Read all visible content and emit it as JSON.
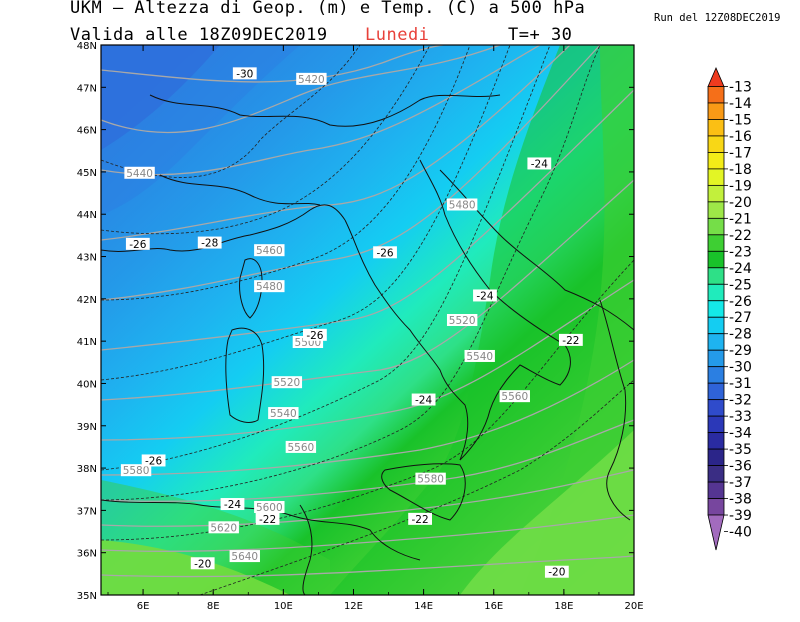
{
  "header": {
    "title": "UKM – Altezza di Geop. (m) e Temp. (C) a 500 hPa",
    "valid": "Valida alle 18Z09DEC2019",
    "day": "Lunedi",
    "step": "T=+ 30",
    "run": "Run del 12Z08DEC2019"
  },
  "map": {
    "lat_labels": [
      "48N",
      "47N",
      "46N",
      "45N",
      "44N",
      "43N",
      "42N",
      "41N",
      "40N",
      "39N",
      "38N",
      "37N",
      "36N",
      "35N"
    ],
    "lon_labels": [
      "6E",
      "8E",
      "10E",
      "12E",
      "14E",
      "16E",
      "18E",
      "20E"
    ],
    "height_labels": [
      {
        "text": "5420",
        "lon": 10.8,
        "lat": 47.2
      },
      {
        "text": "5440",
        "lon": 5.9,
        "lat": 44.98
      },
      {
        "text": "5480",
        "lon": 15.1,
        "lat": 44.23
      },
      {
        "text": "5460",
        "lon": 9.6,
        "lat": 43.15
      },
      {
        "text": "5480",
        "lon": 9.6,
        "lat": 42.3
      },
      {
        "text": "5520",
        "lon": 15.1,
        "lat": 41.5
      },
      {
        "text": "5500",
        "lon": 10.7,
        "lat": 40.98
      },
      {
        "text": "5540",
        "lon": 15.6,
        "lat": 40.65
      },
      {
        "text": "5520",
        "lon": 10.1,
        "lat": 40.03
      },
      {
        "text": "5560",
        "lon": 16.6,
        "lat": 39.7
      },
      {
        "text": "5540",
        "lon": 10.0,
        "lat": 39.3
      },
      {
        "text": "5560",
        "lon": 10.5,
        "lat": 38.5
      },
      {
        "text": "5580",
        "lon": 5.8,
        "lat": 37.95
      },
      {
        "text": "5580",
        "lon": 14.2,
        "lat": 37.75
      },
      {
        "text": "5600",
        "lon": 9.6,
        "lat": 37.08
      },
      {
        "text": "5620",
        "lon": 8.3,
        "lat": 36.6
      },
      {
        "text": "5640",
        "lon": 8.9,
        "lat": 35.92
      }
    ],
    "temp_labels": [
      {
        "text": "-30",
        "lon": 8.9,
        "lat": 47.33
      },
      {
        "text": "-26",
        "lon": 5.85,
        "lat": 43.3
      },
      {
        "text": "-28",
        "lon": 7.9,
        "lat": 43.33
      },
      {
        "text": "-26",
        "lon": 12.9,
        "lat": 43.1
      },
      {
        "text": "-24",
        "lon": 17.3,
        "lat": 45.2
      },
      {
        "text": "-24",
        "lon": 15.75,
        "lat": 42.08
      },
      {
        "text": "-22",
        "lon": 18.2,
        "lat": 41.03
      },
      {
        "text": "-26",
        "lon": 10.9,
        "lat": 41.15
      },
      {
        "text": "-24",
        "lon": 14.0,
        "lat": 39.62
      },
      {
        "text": "-26",
        "lon": 6.3,
        "lat": 38.18
      },
      {
        "text": "-24",
        "lon": 8.55,
        "lat": 37.15
      },
      {
        "text": "-22",
        "lon": 9.55,
        "lat": 36.8
      },
      {
        "text": "-22",
        "lon": 13.9,
        "lat": 36.8
      },
      {
        "text": "-20",
        "lon": 7.7,
        "lat": 35.75
      },
      {
        "text": "-20",
        "lon": 17.8,
        "lat": 35.55
      }
    ]
  },
  "legend": {
    "values": [
      "-13",
      "-14",
      "-15",
      "-16",
      "-17",
      "-18",
      "-19",
      "-20",
      "-21",
      "-22",
      "-23",
      "-24",
      "-25",
      "-26",
      "-27",
      "-28",
      "-29",
      "-30",
      "-31",
      "-32",
      "-33",
      "-34",
      "-35",
      "-36",
      "-37",
      "-38",
      "-39",
      "-40"
    ],
    "colors": [
      "#ee3b1f",
      "#f56f19",
      "#f99a16",
      "#fbbf14",
      "#f8d716",
      "#f3ec18",
      "#e3f525",
      "#c2f03c",
      "#9ee848",
      "#75de48",
      "#3ecf33",
      "#19c22a",
      "#2ee087",
      "#20ebbc",
      "#14e9e8",
      "#14cdf2",
      "#1eb3f0",
      "#249ae9",
      "#2b7fe2",
      "#2f63d8",
      "#2f4bcb",
      "#2b38b8",
      "#2a2ba1",
      "#2b2589",
      "#3a2d84",
      "#553592",
      "#77469e",
      "#a26bbe"
    ]
  }
}
